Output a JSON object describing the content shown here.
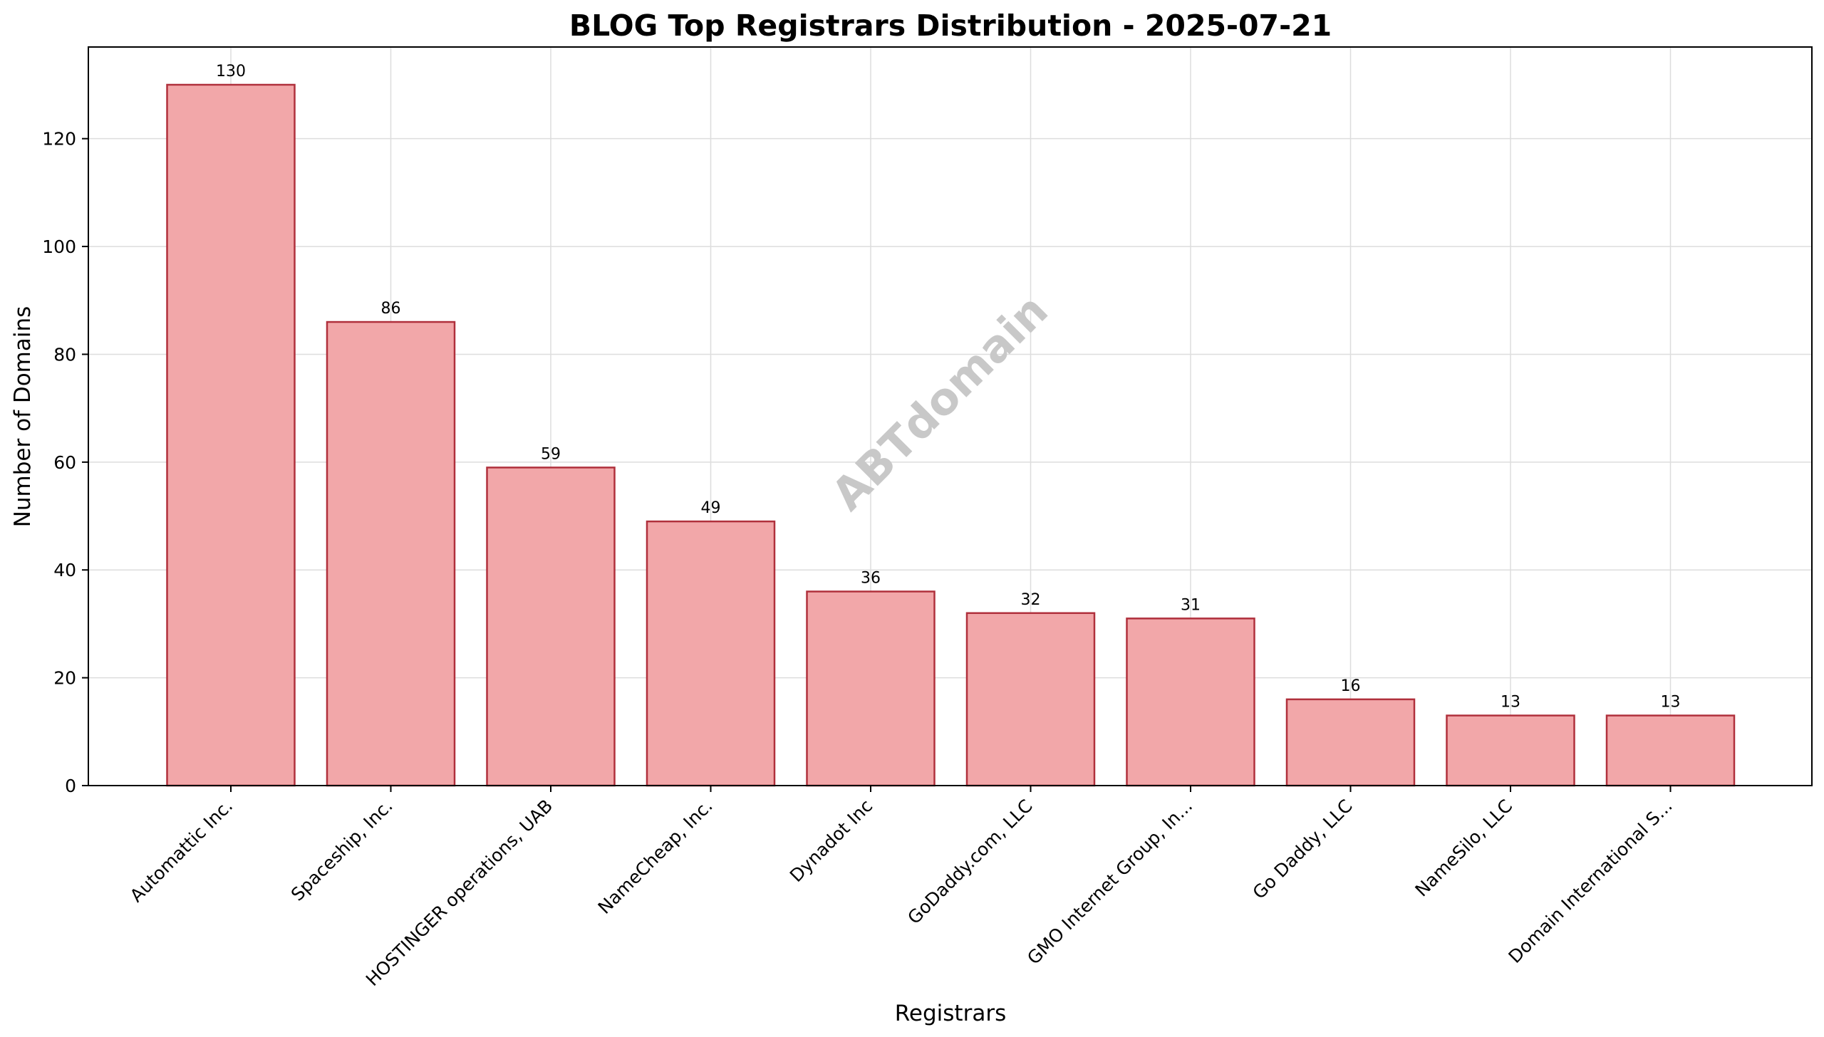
{
  "chart_data": {
    "type": "bar",
    "title": "BLOG Top Registrars Distribution - 2025-07-21",
    "xlabel": "Registrars",
    "ylabel": "Number of Domains",
    "categories": [
      "Automattic Inc.",
      "Spaceship, Inc.",
      "HOSTINGER operations, UAB",
      "NameCheap, Inc.",
      "Dynadot Inc",
      "GoDaddy.com, LLC",
      "GMO Internet Group, In...",
      "Go Daddy, LLC",
      "NameSilo, LLC",
      "Domain International S..."
    ],
    "values": [
      130,
      86,
      59,
      49,
      36,
      32,
      31,
      16,
      13,
      13
    ],
    "ylim": [
      0,
      137
    ],
    "yticks": [
      0,
      20,
      40,
      60,
      80,
      100,
      120
    ],
    "grid": true,
    "bar_color": "#f2a7a9",
    "bar_edge_color": "#b0303c",
    "watermark": "ABTdomain"
  }
}
